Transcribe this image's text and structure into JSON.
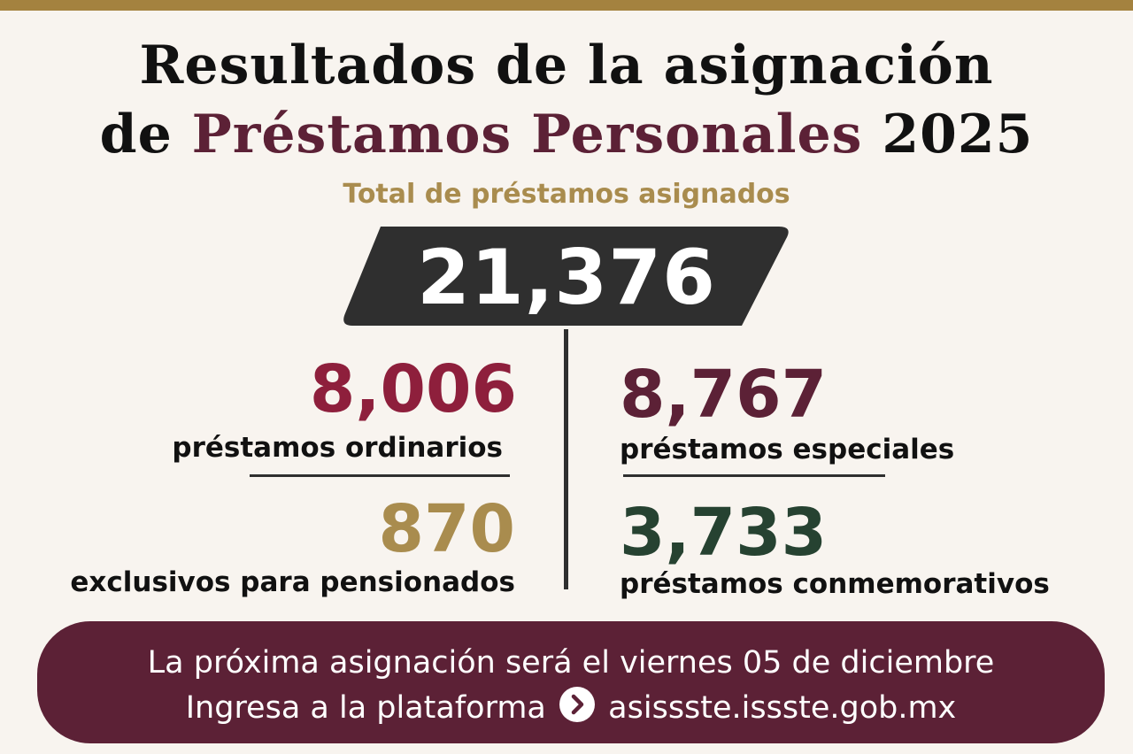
{
  "title": {
    "line1": "Resultados de la asignación",
    "line2_prefix": "de ",
    "line2_accent": "Préstamos Personales",
    "line2_suffix": " 2025"
  },
  "subtitle": "Total de préstamos asignados",
  "total": {
    "value": "21,376"
  },
  "stats": {
    "ordinarios": {
      "value": "8,006",
      "label": "préstamos ordinarios"
    },
    "especiales": {
      "value": "8,767",
      "label": "préstamos especiales"
    },
    "pensionados": {
      "value": "870",
      "label": "exclusivos para pensionados"
    },
    "conmemorativos": {
      "value": "3,733",
      "label": "préstamos conmemorativos"
    }
  },
  "banner": {
    "line1": "La próxima asignación será el viernes 05 de diciembre",
    "line2_prefix": "Ingresa a la plataforma",
    "link_icon": "chevron-right-circle-icon",
    "line2_link": "asissste.issste.gob.mx"
  },
  "colors": {
    "background": "#f8f4ef",
    "gold": "#a4823f",
    "wine": "#5c2136",
    "crimson": "#8e1f3c",
    "dark_green": "#264231",
    "charcoal": "#2f2f2f"
  }
}
